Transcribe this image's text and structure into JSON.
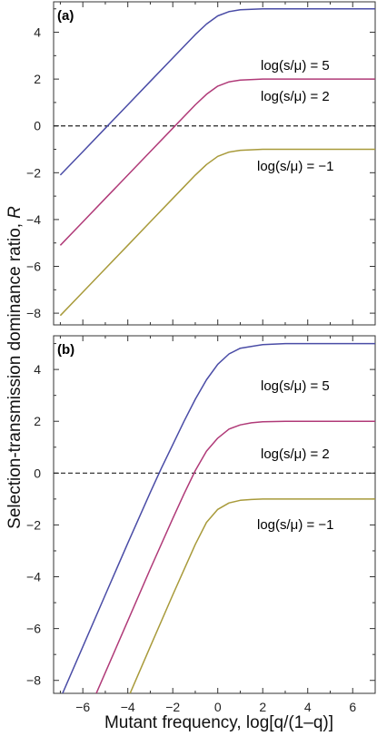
{
  "ylabel": "Selection-transmission dominance ratio,",
  "ylabel_symbol": "R",
  "xlabel": "Mutant frequency, log[q/(1–q)]",
  "chart_data": [
    {
      "type": "line",
      "panel_label": "(a)",
      "xlim": [
        -7.3,
        7.0
      ],
      "ylim": [
        -8.5,
        5.3
      ],
      "xticks": [
        -6,
        -4,
        -2,
        0,
        2,
        4,
        6
      ],
      "yticks": [
        -8,
        -6,
        -4,
        -2,
        0,
        2,
        4
      ],
      "reference_line": {
        "y": 0,
        "style": "dashed"
      },
      "series": [
        {
          "name": "log(s/μ) = 5",
          "color": "#4a4ca6",
          "x": [
            -7.0,
            -6.0,
            -5.0,
            -4.0,
            -3.0,
            -2.0,
            -1.5,
            -1.0,
            -0.5,
            0.0,
            0.5,
            1.0,
            2.0,
            3.0,
            5.0,
            7.0
          ],
          "y": [
            -2.1,
            -1.1,
            -0.1,
            0.9,
            1.9,
            2.9,
            3.4,
            3.9,
            4.35,
            4.7,
            4.88,
            4.96,
            5.0,
            5.0,
            5.0,
            5.0
          ]
        },
        {
          "name": "log(s/μ) = 2",
          "color": "#b03a78",
          "x": [
            -7.0,
            -6.0,
            -5.0,
            -4.0,
            -3.0,
            -2.0,
            -1.5,
            -1.0,
            -0.5,
            0.0,
            0.5,
            1.0,
            2.0,
            3.0,
            5.0,
            7.0
          ],
          "y": [
            -5.1,
            -4.1,
            -3.1,
            -2.1,
            -1.1,
            -0.1,
            0.4,
            0.9,
            1.35,
            1.7,
            1.88,
            1.96,
            2.0,
            2.0,
            2.0,
            2.0
          ]
        },
        {
          "name": "log(s/μ) = −1",
          "color": "#a89a3a",
          "x": [
            -7.0,
            -6.0,
            -5.0,
            -4.0,
            -3.0,
            -2.0,
            -1.5,
            -1.0,
            -0.5,
            0.0,
            0.5,
            1.0,
            2.0,
            3.0,
            5.0,
            7.0
          ],
          "y": [
            -8.1,
            -7.1,
            -6.1,
            -5.1,
            -4.1,
            -3.1,
            -2.6,
            -2.1,
            -1.65,
            -1.3,
            -1.12,
            -1.04,
            -1.0,
            -1.0,
            -1.0,
            -1.0
          ]
        }
      ]
    },
    {
      "type": "line",
      "panel_label": "(b)",
      "xlim": [
        -7.3,
        7.0
      ],
      "ylim": [
        -8.5,
        5.3
      ],
      "xticks": [
        -6,
        -4,
        -2,
        0,
        2,
        4,
        6
      ],
      "yticks": [
        -8,
        -6,
        -4,
        -2,
        0,
        2,
        4
      ],
      "reference_line": {
        "y": 0,
        "style": "dashed"
      },
      "series": [
        {
          "name": "log(s/μ) = 5",
          "color": "#4a4ca6",
          "x": [
            -6.9,
            -6.0,
            -5.0,
            -4.0,
            -3.0,
            -2.5,
            -2.0,
            -1.5,
            -1.0,
            -0.5,
            0.0,
            0.5,
            1.0,
            2.0,
            3.0,
            5.0,
            7.0
          ],
          "y": [
            -8.5,
            -6.7,
            -4.7,
            -2.7,
            -0.75,
            0.2,
            1.1,
            2.0,
            2.85,
            3.6,
            4.2,
            4.6,
            4.82,
            4.96,
            5.0,
            5.0,
            5.0
          ]
        },
        {
          "name": "log(s/μ) = 2",
          "color": "#b03a78",
          "x": [
            -5.4,
            -5.0,
            -4.0,
            -3.0,
            -2.0,
            -1.5,
            -1.0,
            -0.5,
            0.0,
            0.5,
            1.0,
            1.5,
            2.0,
            3.0,
            5.0,
            7.0
          ],
          "y": [
            -8.5,
            -7.7,
            -5.7,
            -3.7,
            -1.75,
            -0.8,
            0.1,
            0.85,
            1.35,
            1.7,
            1.86,
            1.94,
            1.98,
            2.0,
            2.0,
            2.0
          ]
        },
        {
          "name": "log(s/μ) = −1",
          "color": "#a89a3a",
          "x": [
            -3.9,
            -3.0,
            -2.0,
            -1.0,
            -0.5,
            0.0,
            0.5,
            1.0,
            1.5,
            2.0,
            3.0,
            5.0,
            7.0
          ],
          "y": [
            -8.5,
            -6.7,
            -4.7,
            -2.75,
            -1.9,
            -1.4,
            -1.15,
            -1.05,
            -1.02,
            -1.0,
            -1.0,
            -1.0,
            -1.0
          ]
        }
      ]
    }
  ]
}
